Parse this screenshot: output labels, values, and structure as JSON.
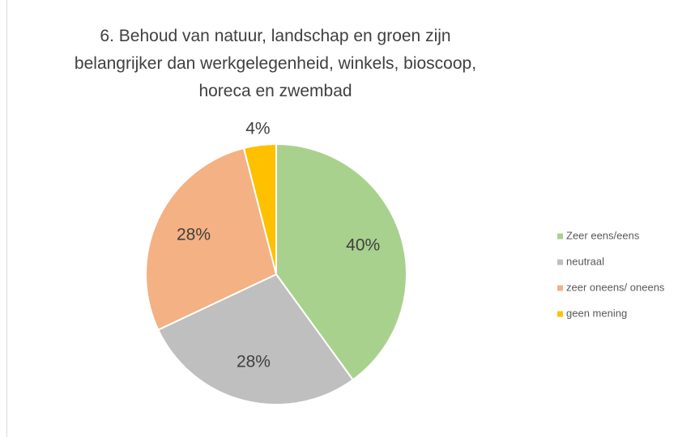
{
  "chart_data": {
    "type": "pie",
    "title": "6. Behoud van natuur, landschap en groen zijn belangrijker dan werkgelegenheid, winkels, bioscoop, horeca en zwembad",
    "categories": [
      "Zeer eens/eens",
      "neutraal",
      "zeer oneens/ oneens",
      "geen mening"
    ],
    "values": [
      40,
      28,
      28,
      4
    ],
    "value_labels": [
      "40%",
      "28%",
      "28%",
      "4%"
    ],
    "colors": [
      "#a9d18e",
      "#bfbfbf",
      "#f4b183",
      "#ffc000"
    ],
    "legend": "right"
  }
}
